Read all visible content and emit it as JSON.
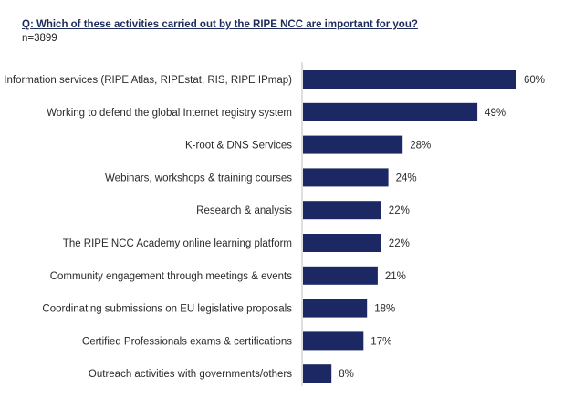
{
  "header": {
    "question": "Q: Which of these activities carried out by the RIPE NCC are important for you?",
    "sample": "n=3899"
  },
  "colors": {
    "bar": "#1c2863",
    "axis": "#bfbfbf",
    "text": "#2b2b2b"
  },
  "chart_data": {
    "type": "bar",
    "orientation": "horizontal",
    "title": "Q: Which of these activities carried out by the RIPE NCC are important for you?",
    "categories": [
      "Information services (RIPE Atlas, RIPEstat, RIS, RIPE IPmap)",
      "Working to defend the global Internet registry system",
      "K-root & DNS Services",
      "Webinars, workshops & training courses",
      "Research & analysis",
      "The RIPE NCC Academy online learning platform",
      "Community engagement through meetings & events",
      "Coordinating submissions on EU legislative proposals",
      "Certified Professionals exams & certifications",
      "Outreach activities with governments/others"
    ],
    "values": [
      60,
      49,
      28,
      24,
      22,
      22,
      21,
      18,
      17,
      8
    ],
    "value_labels": [
      "60%",
      "49%",
      "28%",
      "24%",
      "22%",
      "22%",
      "21%",
      "18%",
      "17%",
      "8%"
    ],
    "unit": "%",
    "grid": false,
    "legend": "none"
  }
}
